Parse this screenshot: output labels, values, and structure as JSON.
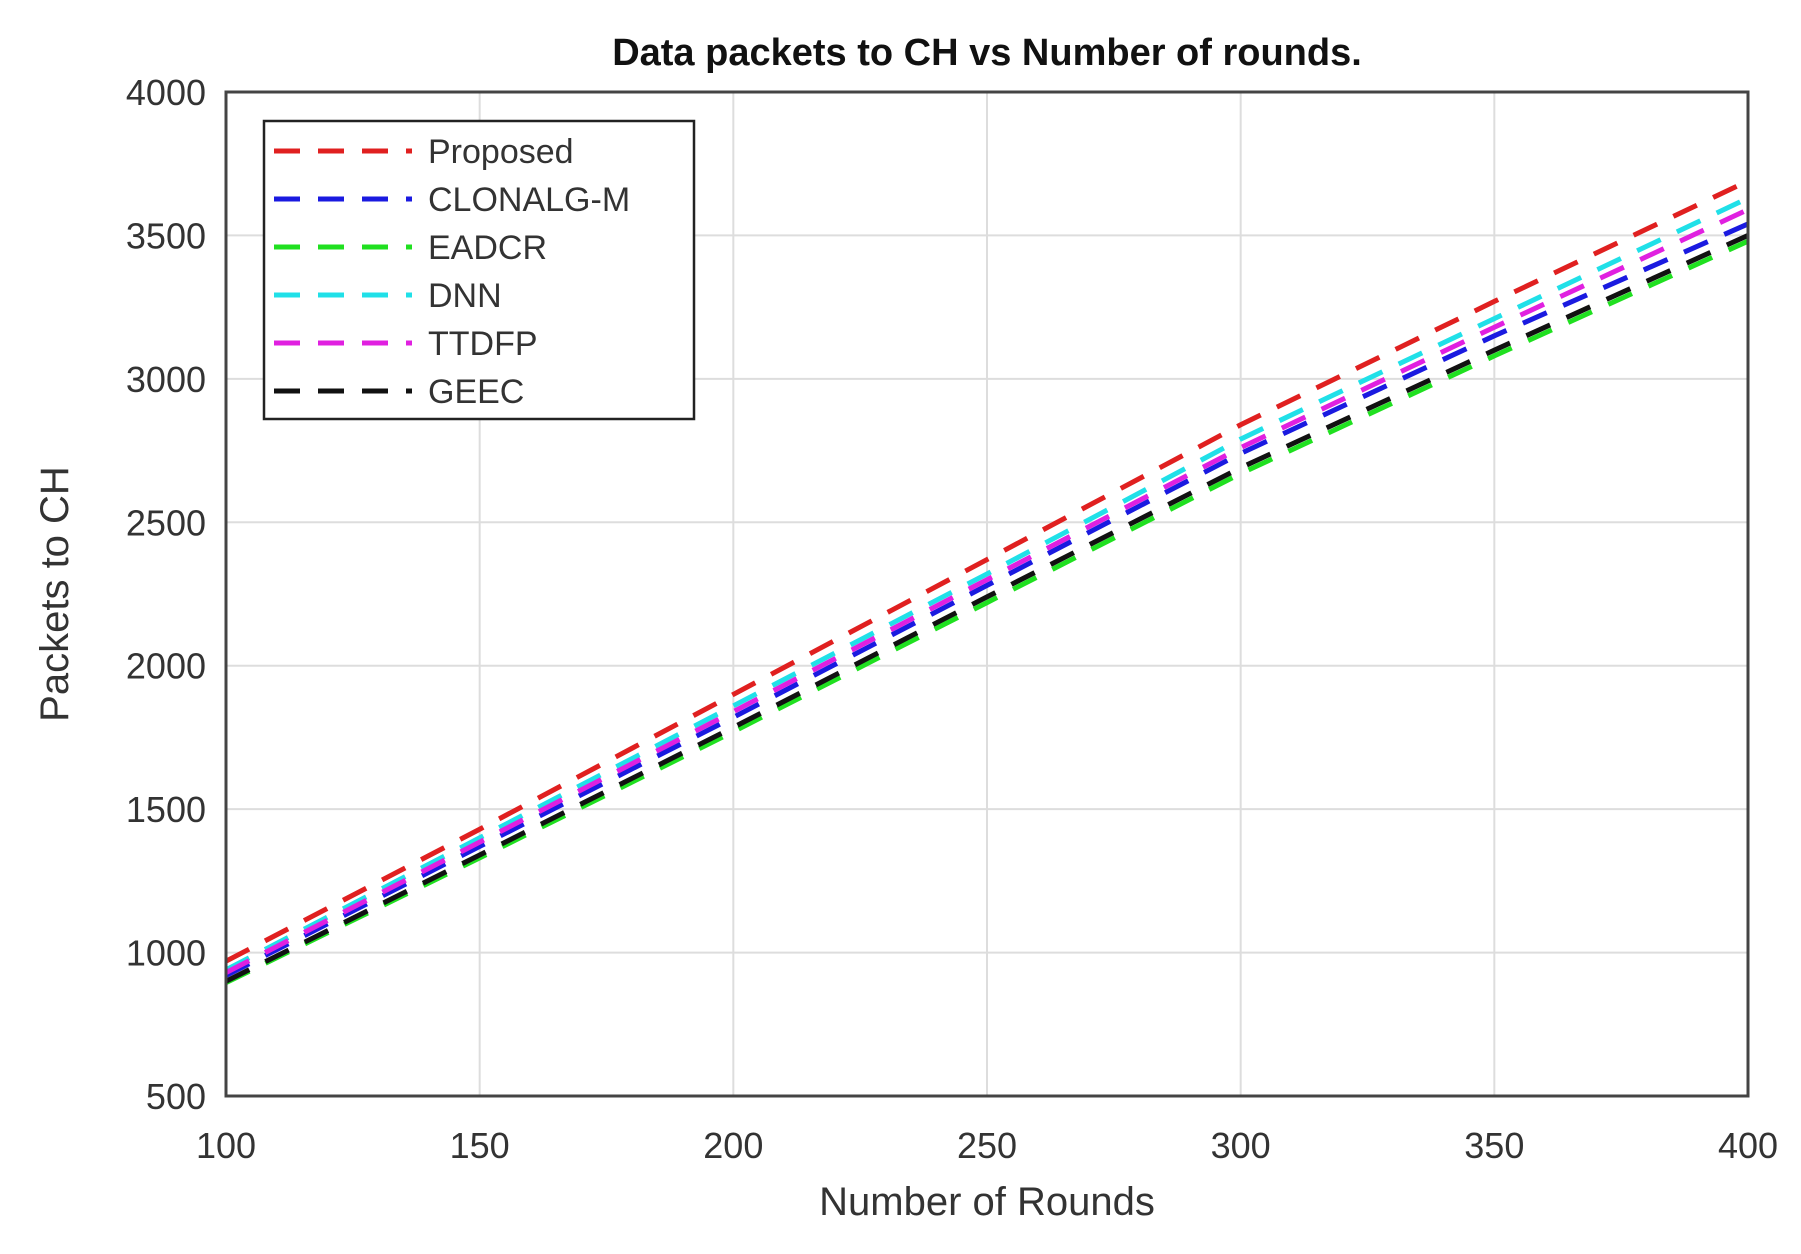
{
  "chart_data": {
    "type": "line",
    "title": "Data packets to CH vs Number of rounds.",
    "xlabel": "Number of Rounds",
    "ylabel": "Packets to CH",
    "xlim": [
      100,
      400
    ],
    "ylim": [
      500,
      4000
    ],
    "xticks": [
      100,
      150,
      200,
      250,
      300,
      350,
      400
    ],
    "yticks": [
      500,
      1000,
      1500,
      2000,
      2500,
      3000,
      3500,
      4000
    ],
    "grid": true,
    "legend_position": "top-left",
    "line_style": "dashed",
    "x": [
      100,
      150,
      200,
      250,
      300,
      350,
      400
    ],
    "series": [
      {
        "name": "Proposed",
        "color": "#e02020",
        "values": [
          970,
          1430,
          1900,
          2370,
          2840,
          3270,
          3690
        ]
      },
      {
        "name": "CLONALG-M",
        "color": "#1a1ae0",
        "values": [
          920,
          1370,
          1820,
          2280,
          2740,
          3150,
          3540
        ]
      },
      {
        "name": "EADCR",
        "color": "#20e020",
        "values": [
          895,
          1330,
          1770,
          2220,
          2670,
          3080,
          3480
        ]
      },
      {
        "name": "DNN",
        "color": "#20e0e8",
        "values": [
          940,
          1400,
          1860,
          2320,
          2790,
          3210,
          3630
        ]
      },
      {
        "name": "TTDFP",
        "color": "#e020e0",
        "values": [
          930,
          1385,
          1840,
          2300,
          2760,
          3180,
          3590
        ]
      },
      {
        "name": "GEEC",
        "color": "#111111",
        "values": [
          900,
          1340,
          1785,
          2240,
          2690,
          3100,
          3500
        ]
      }
    ]
  }
}
